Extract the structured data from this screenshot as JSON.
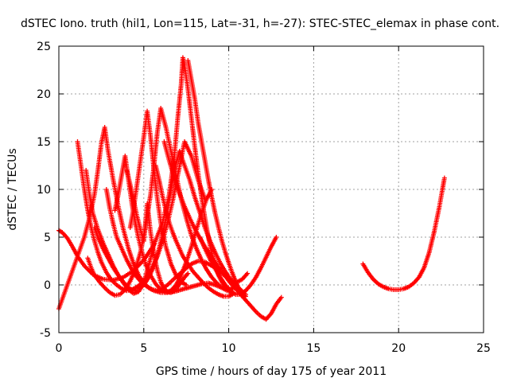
{
  "chart_data": {
    "type": "scatter",
    "title": "dSTEC Iono. truth (hil1, Lon=115, Lat=-31, h=-27): STEC-STEC_elemax in phase cont.",
    "xlabel": "GPS time / hours of day 175 of year 2011",
    "ylabel": "dSTEC  / TECUs",
    "xlim": [
      0,
      25
    ],
    "ylim": [
      -5,
      25
    ],
    "xticks": [
      "0",
      "5",
      "10",
      "15",
      "20",
      "25"
    ],
    "yticks": [
      "-5",
      "0",
      "5",
      "10",
      "15",
      "20",
      "25"
    ],
    "grid": true,
    "legend": "none",
    "marker": "+",
    "color": "#ff0000",
    "series": [
      {
        "x": [
          0.0,
          0.2,
          0.5,
          0.8,
          1.1,
          1.5,
          2.0,
          2.6,
          3.2,
          3.8,
          4.4,
          5.0,
          5.6,
          6.1,
          6.5,
          6.8,
          7.0,
          7.2,
          7.3,
          7.4,
          7.6,
          7.8,
          8.0,
          8.2,
          8.4,
          8.6,
          8.8,
          9.0,
          9.2,
          9.4,
          9.6,
          9.8,
          10.0,
          10.1
        ],
        "y": [
          5.7,
          5.5,
          4.9,
          4.0,
          3.0,
          2.0,
          1.1,
          0.6,
          0.5,
          0.8,
          1.5,
          2.6,
          4.2,
          6.5,
          9.5,
          13.5,
          17.5,
          21.0,
          23.8,
          23.0,
          20.5,
          17.5,
          14.5,
          11.7,
          9.2,
          7.0,
          5.0,
          3.3,
          2.0,
          1.0,
          0.3,
          -0.2,
          -0.6,
          -0.8
        ]
      },
      {
        "x": [
          0.0,
          0.3,
          0.6,
          0.9,
          1.2,
          1.5,
          1.8,
          2.1,
          2.3,
          2.5,
          2.7,
          2.9,
          3.2,
          3.5,
          3.8,
          4.1,
          4.4,
          4.7,
          5.0,
          5.3,
          5.6,
          6.0,
          6.4,
          6.8,
          7.2,
          7.6,
          8.0,
          8.4,
          8.8,
          9.2,
          9.6,
          10.0,
          10.3
        ],
        "y": [
          -2.5,
          -1.0,
          0.5,
          2.0,
          3.5,
          5.0,
          7.0,
          9.5,
          12.0,
          14.8,
          16.5,
          14.0,
          11.0,
          8.2,
          5.8,
          3.8,
          2.2,
          1.0,
          0.2,
          -0.3,
          -0.6,
          -0.8,
          -0.8,
          -0.7,
          -0.5,
          -0.3,
          -0.1,
          0.1,
          0.2,
          0.0,
          -0.3,
          -0.5,
          -0.3
        ]
      },
      {
        "x": [
          1.1,
          1.3,
          1.5,
          1.7,
          1.9,
          2.1,
          2.3,
          2.5,
          2.8,
          3.1,
          3.4,
          3.7,
          4.0,
          4.3,
          4.6,
          4.9,
          5.2,
          5.5,
          5.8,
          6.1,
          6.4,
          6.7,
          7.0,
          7.4,
          7.8,
          8.2,
          8.6
        ],
        "y": [
          15.0,
          12.5,
          10.0,
          7.8,
          6.0,
          4.6,
          3.4,
          2.4,
          1.3,
          0.5,
          0.0,
          -0.4,
          -0.6,
          -0.5,
          -0.2,
          0.2,
          0.8,
          1.8,
          3.0,
          4.6,
          6.5,
          8.8,
          11.5,
          15.0,
          13.5,
          11.0,
          9.0
        ]
      },
      {
        "x": [
          1.6,
          1.8,
          2.0,
          2.3,
          2.6,
          2.9,
          3.2,
          3.5,
          3.8,
          4.1,
          4.4,
          4.7,
          5.0,
          5.2,
          5.4,
          5.6
        ],
        "y": [
          12.0,
          9.5,
          7.5,
          5.8,
          4.4,
          3.2,
          2.0,
          1.0,
          0.2,
          -0.5,
          -0.9,
          -0.7,
          0.2,
          1.5,
          2.8,
          4.3
        ]
      },
      {
        "x": [
          1.7,
          1.9,
          2.1,
          2.4,
          2.7,
          3.0,
          3.3,
          3.6,
          3.9,
          4.2,
          4.5,
          4.8,
          5.1,
          5.4,
          5.6,
          5.8,
          6.0,
          6.3,
          6.6,
          6.9,
          7.2,
          7.5,
          7.8,
          8.1,
          8.4,
          8.7,
          9.0,
          9.3,
          9.6,
          9.9
        ],
        "y": [
          2.8,
          1.8,
          1.0,
          0.3,
          -0.3,
          -0.8,
          -1.1,
          -1.0,
          -0.5,
          0.4,
          1.6,
          3.4,
          6.0,
          9.5,
          12.5,
          16.0,
          18.5,
          16.5,
          14.0,
          11.5,
          9.0,
          7.0,
          5.2,
          3.8,
          2.6,
          1.6,
          0.8,
          0.2,
          -0.3,
          -0.6
        ]
      },
      {
        "x": [
          2.1,
          2.3,
          2.6,
          2.9,
          3.2,
          3.5,
          3.8,
          4.1,
          4.4,
          4.7,
          5.0,
          5.3,
          5.6,
          5.9,
          6.2,
          6.5,
          6.8,
          7.1,
          7.4,
          7.7,
          8.0,
          8.3,
          8.6,
          8.9,
          9.2,
          9.5,
          9.8,
          10.1,
          10.4,
          10.7,
          11.0
        ],
        "y": [
          6.0,
          5.0,
          3.8,
          2.8,
          1.8,
          1.0,
          0.3,
          -0.3,
          -0.6,
          -0.5,
          0.0,
          0.8,
          2.0,
          3.8,
          6.0,
          8.8,
          12.0,
          14.0,
          12.5,
          11.0,
          9.2,
          7.6,
          6.0,
          4.6,
          3.4,
          2.3,
          1.4,
          0.6,
          0.0,
          -0.5,
          -1.0
        ]
      },
      {
        "x": [
          2.8,
          3.0,
          3.2,
          3.4,
          3.6,
          3.8,
          4.0,
          4.3,
          4.6,
          4.9,
          5.2,
          5.5,
          5.8,
          6.1,
          6.4,
          6.7,
          7.0,
          7.4,
          7.8,
          8.2,
          8.6,
          9.0,
          9.4,
          9.8,
          10.2,
          10.5,
          10.8,
          11.1
        ],
        "y": [
          10.0,
          8.0,
          6.4,
          5.0,
          4.2,
          3.4,
          2.6,
          1.6,
          0.8,
          0.2,
          -0.2,
          -0.5,
          -0.6,
          -0.4,
          0.0,
          0.5,
          1.0,
          1.6,
          2.2,
          2.5,
          2.4,
          2.0,
          1.5,
          0.9,
          0.4,
          0.3,
          0.6,
          1.2
        ]
      },
      {
        "x": [
          3.3,
          3.5,
          3.7,
          3.9,
          4.1,
          4.3,
          4.5,
          4.7,
          4.9,
          5.1,
          5.4,
          5.7,
          6.0,
          6.3,
          6.6,
          6.9,
          7.2,
          7.5,
          7.8,
          8.1,
          8.4,
          8.7,
          9.0
        ],
        "y": [
          7.8,
          9.5,
          11.5,
          13.5,
          11.0,
          8.5,
          6.5,
          4.8,
          3.4,
          2.2,
          1.0,
          0.1,
          -0.5,
          -0.8,
          -0.6,
          0.0,
          1.0,
          2.4,
          4.0,
          5.8,
          7.5,
          9.0,
          10.0
        ]
      },
      {
        "x": [
          4.0,
          4.2,
          4.4,
          4.6,
          4.8,
          5.0,
          5.1,
          5.2,
          5.4,
          5.6,
          5.8,
          6.0,
          6.2,
          6.4,
          6.6,
          6.8,
          7.0,
          7.2,
          7.4,
          7.6
        ],
        "y": [
          12.0,
          10.5,
          8.8,
          7.2,
          5.8,
          4.6,
          6.5,
          8.5,
          5.5,
          3.2,
          1.5,
          0.3,
          -0.4,
          -0.7,
          -0.8,
          -0.6,
          -0.2,
          0.3,
          0.8,
          1.2
        ]
      },
      {
        "x": [
          4.2,
          4.4,
          4.6,
          4.8,
          5.0,
          5.2,
          5.4,
          5.6,
          5.8,
          6.0,
          6.3,
          6.6,
          6.9,
          7.2,
          7.5
        ],
        "y": [
          6.0,
          8.0,
          10.5,
          13.0,
          15.5,
          18.2,
          15.5,
          12.0,
          9.0,
          6.5,
          4.0,
          2.2,
          1.0,
          0.3,
          0.0
        ]
      },
      {
        "x": [
          5.7,
          5.9,
          6.1,
          6.3,
          6.5,
          6.7,
          6.9,
          7.1,
          7.3,
          7.6,
          7.9,
          8.2,
          8.5,
          8.8,
          9.1,
          9.4,
          9.7,
          10.0,
          10.3
        ],
        "y": [
          12.5,
          11.0,
          9.3,
          7.8,
          6.5,
          5.5,
          4.6,
          3.8,
          3.0,
          2.2,
          1.4,
          0.8,
          0.2,
          -0.3,
          -0.7,
          -1.0,
          -1.2,
          -1.2,
          -0.9
        ]
      },
      {
        "x": [
          6.2,
          6.5,
          6.8,
          7.1,
          7.4,
          7.7,
          8.0,
          8.3,
          8.6,
          8.9,
          9.2,
          9.5,
          9.8,
          10.1,
          10.4,
          10.7,
          11.0,
          11.3,
          11.6,
          11.9,
          12.2,
          12.5,
          12.8,
          13.1
        ],
        "y": [
          15.0,
          13.0,
          11.2,
          9.6,
          8.2,
          7.0,
          5.9,
          4.9,
          4.0,
          3.2,
          2.4,
          1.6,
          0.9,
          0.2,
          -0.4,
          -1.0,
          -1.6,
          -2.2,
          -2.8,
          -3.3,
          -3.6,
          -3.0,
          -2.0,
          -1.3
        ]
      },
      {
        "x": [
          7.6,
          7.8,
          8.0,
          8.2,
          8.4,
          8.6,
          8.8,
          9.0,
          9.2,
          9.4,
          9.6,
          9.8,
          10.0,
          10.2,
          10.4,
          10.6,
          10.8,
          11.0
        ],
        "y": [
          23.5,
          21.5,
          19.5,
          17.0,
          15.0,
          13.0,
          11.0,
          9.2,
          7.5,
          6.0,
          4.6,
          3.4,
          2.3,
          1.3,
          0.4,
          -0.4,
          -1.0,
          -1.2
        ]
      },
      {
        "x": [
          8.3,
          8.6,
          8.9,
          9.2,
          9.5,
          9.8,
          10.1,
          10.4,
          10.7,
          11.0,
          11.3,
          11.6,
          11.9,
          12.2,
          12.5,
          12.8
        ],
        "y": [
          5.0,
          3.8,
          2.7,
          1.7,
          0.8,
          0.0,
          -0.6,
          -1.0,
          -1.0,
          -0.6,
          0.0,
          0.8,
          1.8,
          2.9,
          4.0,
          5.0
        ]
      },
      {
        "x": [
          17.9,
          18.2,
          18.5,
          18.8,
          19.1,
          19.4,
          19.7,
          20.0,
          20.3,
          20.6,
          20.9,
          21.2,
          21.5,
          21.8,
          22.1,
          22.4,
          22.7
        ],
        "y": [
          2.2,
          1.3,
          0.6,
          0.1,
          -0.2,
          -0.4,
          -0.5,
          -0.5,
          -0.4,
          -0.2,
          0.2,
          0.8,
          1.8,
          3.4,
          5.6,
          8.2,
          11.2
        ]
      }
    ]
  }
}
